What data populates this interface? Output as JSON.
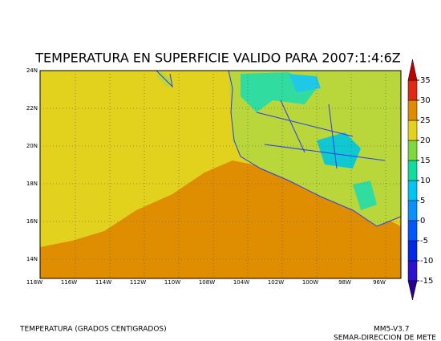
{
  "title": "TEMPERATURA EN SUPERFICIE VALIDO PARA 2007:1:4:6Z",
  "map": {
    "lon_labels": [
      "118W",
      "116W",
      "114W",
      "112W",
      "110W",
      "108W",
      "104W",
      "102W",
      "100W",
      "98W",
      "96W"
    ],
    "lat_labels": [
      "24N",
      "22N",
      "20N",
      "18N",
      "16N",
      "14N"
    ]
  },
  "colorbar": {
    "ticks": [
      -15,
      -10,
      -5,
      0,
      5,
      10,
      15,
      20,
      25,
      30,
      35
    ],
    "colors": [
      "#2d10d0",
      "#0028e8",
      "#0058ff",
      "#0a90ff",
      "#00c4f4",
      "#10dca0",
      "#80d840",
      "#e4d21e",
      "#e08c00",
      "#e02a14"
    ],
    "under_color": "#2a0090",
    "over_color": "#c00000"
  },
  "footer": {
    "left": "TEMPERATURA (GRADOS CENTIGRADOS)",
    "model": "MM5-V3.7",
    "institution": "SEMAR-DIRECCION DE METE"
  }
}
